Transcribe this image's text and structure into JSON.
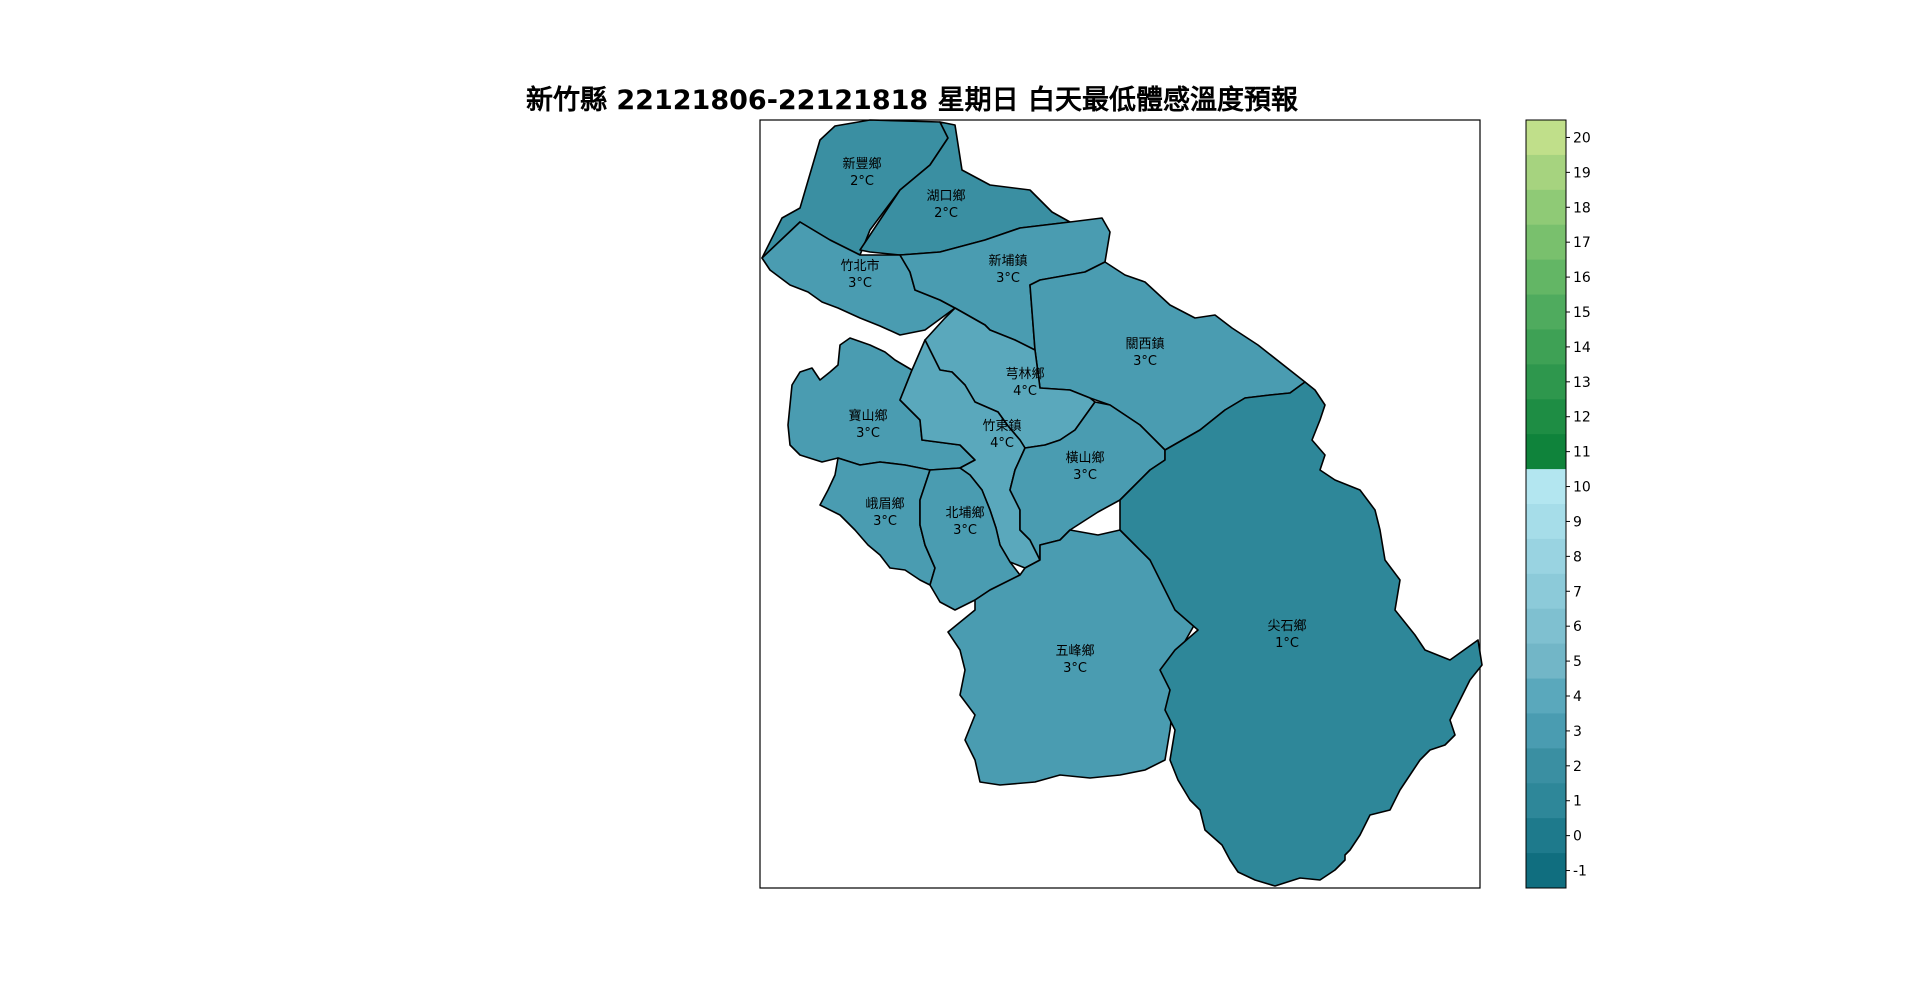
{
  "title": "新竹縣 22121806-22121818 星期日 白天最低體感溫度預報",
  "unit": "°C",
  "regions": [
    {
      "id": "xinfeng",
      "name": "新豐鄉",
      "temp": "2°C",
      "value": 2,
      "color": "#3a8fa2"
    },
    {
      "id": "hukou",
      "name": "湖口鄉",
      "temp": "2°C",
      "value": 2,
      "color": "#3a8fa2"
    },
    {
      "id": "zhubei",
      "name": "竹北市",
      "temp": "3°C",
      "value": 3,
      "color": "#4a9cb1"
    },
    {
      "id": "xinpu",
      "name": "新埔鎮",
      "temp": "3°C",
      "value": 3,
      "color": "#4a9cb1"
    },
    {
      "id": "guanxi",
      "name": "關西鎮",
      "temp": "3°C",
      "value": 3,
      "color": "#4a9cb1"
    },
    {
      "id": "qionglin",
      "name": "芎林鄉",
      "temp": "4°C",
      "value": 4,
      "color": "#5aa8bc"
    },
    {
      "id": "baoshan",
      "name": "寶山鄉",
      "temp": "3°C",
      "value": 3,
      "color": "#4a9cb1"
    },
    {
      "id": "zhudong",
      "name": "竹東鎮",
      "temp": "4°C",
      "value": 4,
      "color": "#5aa8bc"
    },
    {
      "id": "hengshan",
      "name": "橫山鄉",
      "temp": "3°C",
      "value": 3,
      "color": "#4a9cb1"
    },
    {
      "id": "emei",
      "name": "峨眉鄉",
      "temp": "3°C",
      "value": 3,
      "color": "#4a9cb1"
    },
    {
      "id": "beipu",
      "name": "北埔鄉",
      "temp": "3°C",
      "value": 3,
      "color": "#4a9cb1"
    },
    {
      "id": "wufeng",
      "name": "五峰鄉",
      "temp": "3°C",
      "value": 3,
      "color": "#4a9cb1"
    },
    {
      "id": "jianshi",
      "name": "尖石鄉",
      "temp": "1°C",
      "value": 1,
      "color": "#2e8799"
    }
  ],
  "colorbar": {
    "ticks": [
      "20",
      "19",
      "18",
      "17",
      "16",
      "15",
      "14",
      "13",
      "12",
      "11",
      "10",
      "9",
      "8",
      "7",
      "6",
      "5",
      "4",
      "3",
      "2",
      "1",
      "0",
      "-1"
    ],
    "colors": [
      "#c0df8a",
      "#a6d37f",
      "#8fca76",
      "#79c06d",
      "#63b665",
      "#4fab5e",
      "#3ea155",
      "#2e974d",
      "#1e8d44",
      "#0f833b",
      "#b3e6f0",
      "#a6dde9",
      "#99d3e1",
      "#8ccad9",
      "#7fc0d0",
      "#72b6c7",
      "#5aa8bc",
      "#4a9cb1",
      "#3a8fa2",
      "#2e8799",
      "#1e7a8c",
      "#106e7f"
    ]
  }
}
